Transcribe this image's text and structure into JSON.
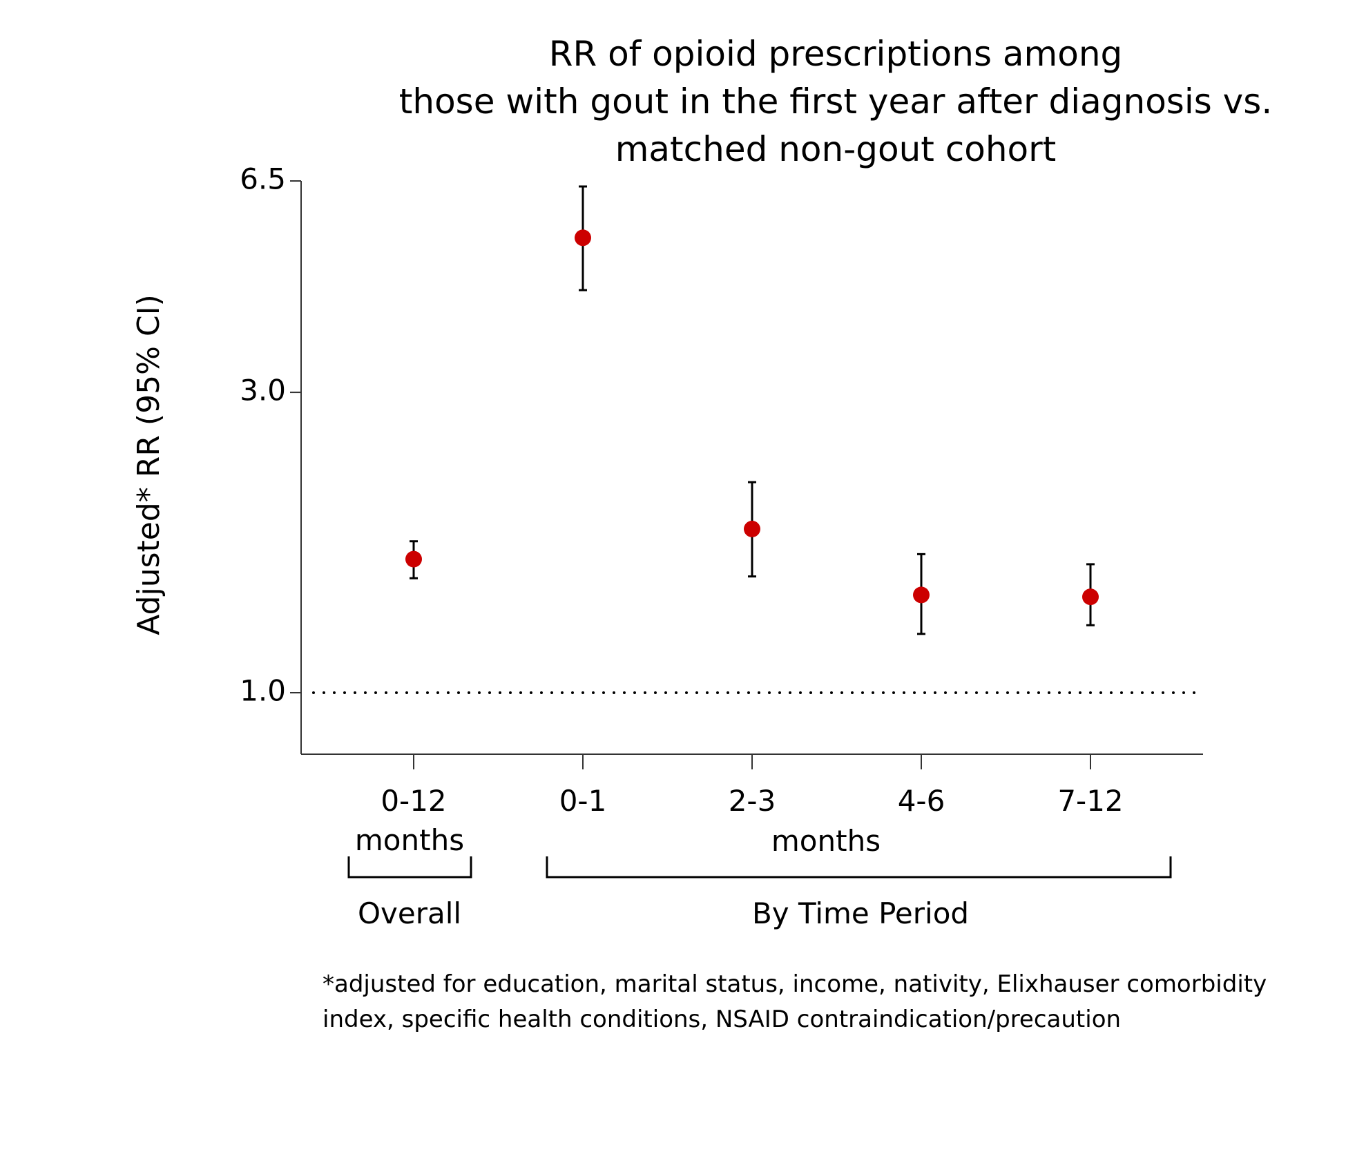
{
  "chart_data": {
    "type": "scatter",
    "title": [
      "RR of opioid prescriptions among",
      "those with gout in the first year after diagnosis vs.",
      "matched non-gout cohort"
    ],
    "ylabel": "Adjusted* RR (95% CI)",
    "xlabel": "",
    "y_scale": "log",
    "yticks": [
      {
        "value": 6.5,
        "label": "6.5"
      },
      {
        "value": 3.0,
        "label": "3.0"
      },
      {
        "value": 1.0,
        "label": "1.0"
      }
    ],
    "reference_line": {
      "value": 1.0,
      "style": "dotted"
    },
    "categories": [
      "0-12",
      "0-1",
      "2-3",
      "4-6",
      "7-12"
    ],
    "points": [
      {
        "category": "0-12",
        "value": 1.63,
        "ci_low": 1.52,
        "ci_high": 1.74
      },
      {
        "category": "0-1",
        "value": 5.28,
        "ci_low": 4.36,
        "ci_high": 6.37
      },
      {
        "category": "2-3",
        "value": 1.82,
        "ci_low": 1.53,
        "ci_high": 2.16
      },
      {
        "category": "4-6",
        "value": 1.43,
        "ci_low": 1.24,
        "ci_high": 1.66
      },
      {
        "category": "7-12",
        "value": 1.42,
        "ci_low": 1.28,
        "ci_high": 1.6
      }
    ],
    "groups": [
      {
        "sublabel": "months",
        "label": "Overall",
        "categories": [
          "0-12"
        ]
      },
      {
        "sublabel": "months",
        "label": "By Time Period",
        "categories": [
          "0-1",
          "2-3",
          "4-6",
          "7-12"
        ]
      }
    ],
    "footnote": [
      "*adjusted for education, marital status, income, nativity, Elixhauser comorbidity",
      "index, specific health conditions, NSAID contraindication/precaution"
    ],
    "marker_color": "#cc0000",
    "grid": false,
    "legend": "none"
  }
}
